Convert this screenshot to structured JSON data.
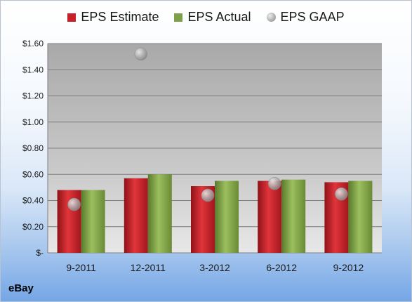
{
  "chart_data": {
    "type": "bar",
    "categories": [
      "9-2011",
      "12-2011",
      "3-2012",
      "6-2012",
      "9-2012"
    ],
    "series": [
      {
        "name": "EPS Estimate",
        "type": "bar",
        "color": "#c8202a",
        "values": [
          0.48,
          0.57,
          0.51,
          0.55,
          0.54
        ]
      },
      {
        "name": "EPS Actual",
        "type": "bar",
        "color": "#7ea048",
        "values": [
          0.48,
          0.6,
          0.55,
          0.56,
          0.55
        ]
      },
      {
        "name": "EPS GAAP",
        "type": "scatter",
        "color": "#a6a6a6",
        "values": [
          0.37,
          1.52,
          0.44,
          0.53,
          0.45
        ]
      }
    ],
    "yticks": [
      "$-",
      "$0.20",
      "$0.40",
      "$0.60",
      "$0.80",
      "$1.00",
      "$1.20",
      "$1.40",
      "$1.60"
    ],
    "ylim": [
      0,
      1.6
    ],
    "grid": true,
    "legend": "top"
  },
  "footer": {
    "company": "eBay"
  }
}
